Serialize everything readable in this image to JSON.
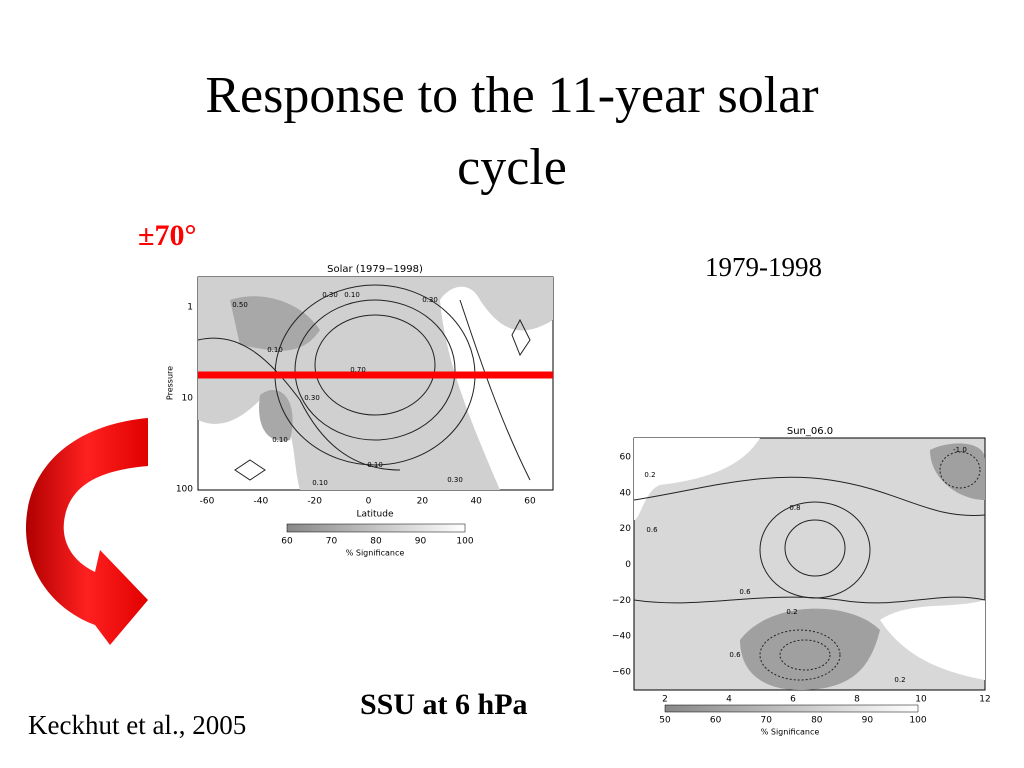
{
  "title": [
    "Response to the 11-year solar",
    "cycle"
  ],
  "annotations": {
    "latitude_band": "±70°",
    "period": "1979-1998",
    "source": "Keckhut et al., 2005",
    "instrument": "SSU at 6 hPa"
  },
  "left_plot": {
    "title": "Solar (1979−1998)",
    "y_label": "Pressure",
    "x_label": "Latitude",
    "y_ticks": [
      "1",
      "10",
      "100"
    ],
    "x_ticks": [
      "-60",
      "-40",
      "-20",
      "0",
      "20",
      "40",
      "60"
    ],
    "contour_labels": [
      "0.50",
      "0.30",
      "0.10",
      "0.30",
      "0.10",
      "0.70",
      "0.30",
      "0.10",
      "0.10",
      "0.30",
      "0.10"
    ],
    "significance_ticks": [
      "60",
      "70",
      "80",
      "90",
      "100"
    ],
    "significance_label": "% Significance"
  },
  "right_plot": {
    "title": "Sun_06.0",
    "y_ticks": [
      "60",
      "40",
      "20",
      "0",
      "−20",
      "−40",
      "−60"
    ],
    "x_ticks": [
      "2",
      "4",
      "6",
      "8",
      "10",
      "12"
    ],
    "contour_labels": [
      "0.2",
      "0.6",
      "0.8",
      "0.6",
      "0.2",
      "-1.0",
      "0.6",
      "0.2"
    ],
    "significance_ticks": [
      "50",
      "60",
      "70",
      "80",
      "90",
      "100"
    ],
    "significance_label": "% Significance"
  }
}
